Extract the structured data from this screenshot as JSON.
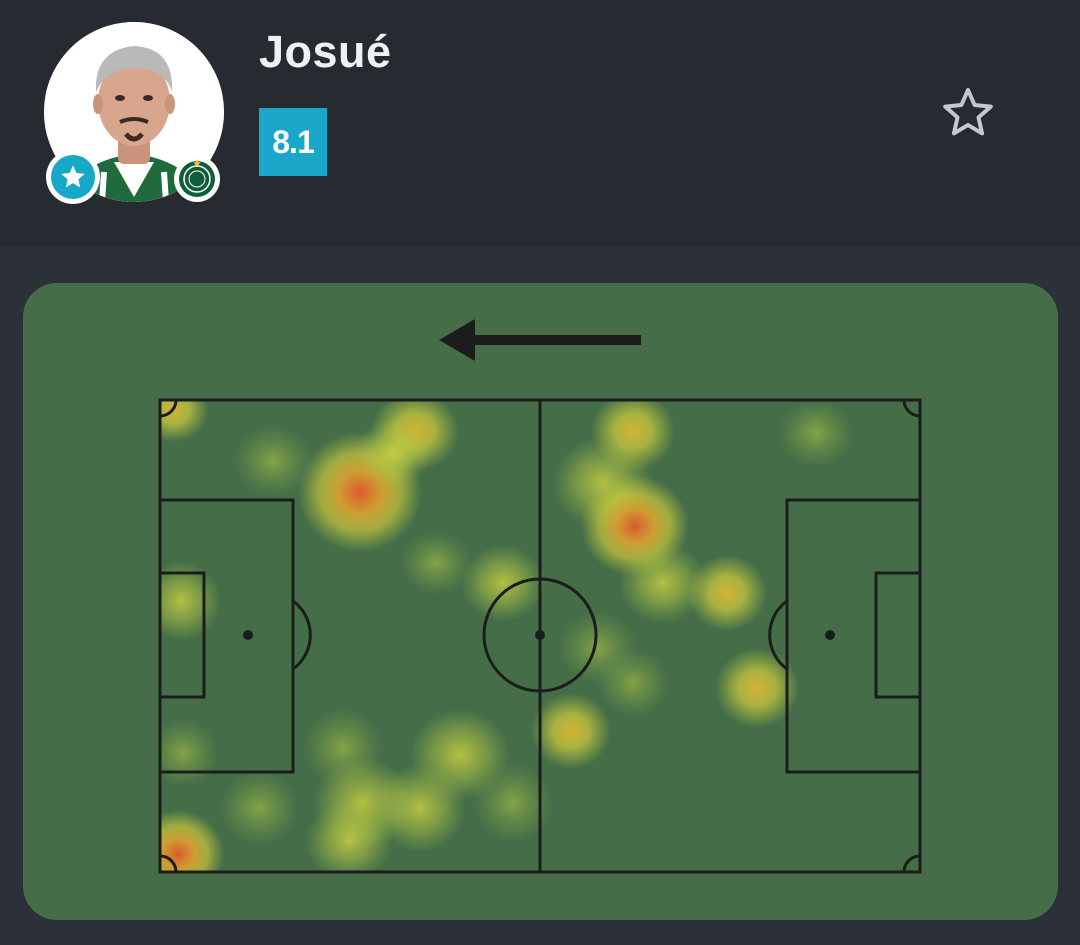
{
  "player": {
    "name": "Josué",
    "rating": "8.1",
    "avatar_icon": "player-photo",
    "badge_icon": "star-icon",
    "club_icon": "club-crest-icon",
    "favorite_icon": "star-outline-icon"
  },
  "heatmap": {
    "attack_direction": "left",
    "direction_icon": "arrow-left-icon",
    "rating_color": "#1ba7c9",
    "pitch_color": "#456e48"
  }
}
